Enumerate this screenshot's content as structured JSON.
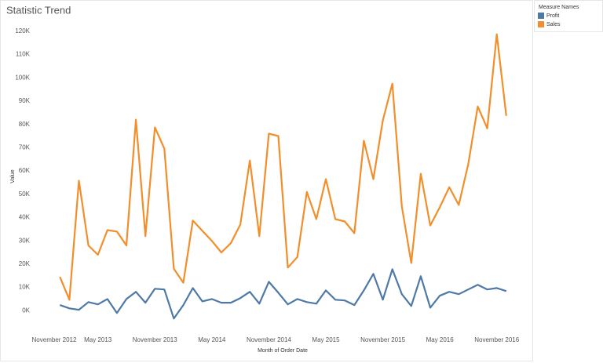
{
  "chart_data": {
    "type": "line",
    "title": "Statistic Trend",
    "x_label": "Month of Order Date",
    "y_label": "Value",
    "legend_title": "Measure Names",
    "x": [
      "2013-01",
      "2013-02",
      "2013-03",
      "2013-04",
      "2013-05",
      "2013-06",
      "2013-07",
      "2013-08",
      "2013-09",
      "2013-10",
      "2013-11",
      "2013-12",
      "2014-01",
      "2014-02",
      "2014-03",
      "2014-04",
      "2014-05",
      "2014-06",
      "2014-07",
      "2014-08",
      "2014-09",
      "2014-10",
      "2014-11",
      "2014-12",
      "2015-01",
      "2015-02",
      "2015-03",
      "2015-04",
      "2015-05",
      "2015-06",
      "2015-07",
      "2015-08",
      "2015-09",
      "2015-10",
      "2015-11",
      "2015-12",
      "2016-01",
      "2016-02",
      "2016-03",
      "2016-04",
      "2016-05",
      "2016-06",
      "2016-07",
      "2016-08",
      "2016-09",
      "2016-10",
      "2016-11",
      "2016-12"
    ],
    "series": [
      {
        "name": "Profit",
        "color": "#4e79a7",
        "values": [
          2400,
          1000,
          400,
          3700,
          2700,
          5000,
          -1000,
          5000,
          8100,
          3400,
          9400,
          9100,
          -3400,
          2400,
          9700,
          4000,
          5000,
          3400,
          3400,
          5400,
          8100,
          3000,
          12400,
          7700,
          2700,
          5000,
          3700,
          3000,
          8700,
          4700,
          4400,
          2400,
          8700,
          15800,
          4700,
          17800,
          7100,
          2000,
          14800,
          1300,
          6400,
          8100,
          7100,
          9100,
          11100,
          9100,
          9700,
          8400
        ]
      },
      {
        "name": "Sales",
        "color": "#f28e2b",
        "values": [
          14500,
          4700,
          55800,
          28000,
          24000,
          34600,
          34000,
          28000,
          82000,
          32000,
          78700,
          69600,
          18000,
          12000,
          38700,
          34300,
          30000,
          25000,
          29000,
          37000,
          64500,
          32000,
          76000,
          75000,
          18500,
          23000,
          51000,
          39300,
          56500,
          39300,
          38300,
          33300,
          73000,
          56500,
          81700,
          97500,
          44700,
          20500,
          58800,
          36600,
          44400,
          53000,
          45400,
          63000,
          87700,
          78300,
          118700,
          83700
        ]
      }
    ],
    "xlim": [
      "2012-10",
      "2017-02"
    ],
    "xticks": [
      {
        "value": "2012-11",
        "label": "November 2012"
      },
      {
        "value": "2013-05",
        "label": "May 2013"
      },
      {
        "value": "2013-11",
        "label": "November 2013"
      },
      {
        "value": "2014-05",
        "label": "May 2014"
      },
      {
        "value": "2014-11",
        "label": "November 2014"
      },
      {
        "value": "2015-05",
        "label": "May 2015"
      },
      {
        "value": "2015-11",
        "label": "November 2015"
      },
      {
        "value": "2016-05",
        "label": "May 2016"
      },
      {
        "value": "2016-11",
        "label": "November 2016"
      }
    ],
    "ylim": [
      -8000,
      124000
    ],
    "yticks": [
      {
        "value": 0,
        "label": "0K"
      },
      {
        "value": 10000,
        "label": "10K"
      },
      {
        "value": 20000,
        "label": "20K"
      },
      {
        "value": 30000,
        "label": "30K"
      },
      {
        "value": 40000,
        "label": "40K"
      },
      {
        "value": 50000,
        "label": "50K"
      },
      {
        "value": 60000,
        "label": "60K"
      },
      {
        "value": 70000,
        "label": "70K"
      },
      {
        "value": 80000,
        "label": "80K"
      },
      {
        "value": 90000,
        "label": "90K"
      },
      {
        "value": 100000,
        "label": "100K"
      },
      {
        "value": 110000,
        "label": "110K"
      },
      {
        "value": 120000,
        "label": "120K"
      }
    ],
    "legend_position": "right"
  }
}
